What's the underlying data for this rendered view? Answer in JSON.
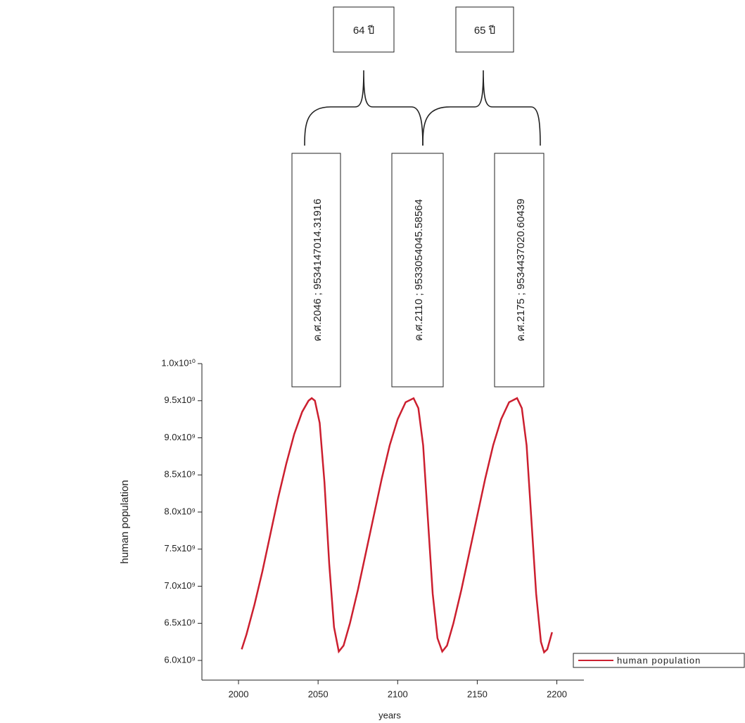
{
  "chart_data": {
    "type": "line",
    "xlabel": "years",
    "ylabel": "human population",
    "x": [
      2002,
      2005,
      2010,
      2015,
      2020,
      2025,
      2030,
      2035,
      2040,
      2044,
      2046,
      2048,
      2051,
      2054,
      2057,
      2060,
      2063,
      2066,
      2070,
      2075,
      2080,
      2085,
      2090,
      2095,
      2100,
      2105,
      2110,
      2113,
      2116,
      2119,
      2122,
      2125,
      2128,
      2131,
      2135,
      2140,
      2145,
      2150,
      2155,
      2160,
      2165,
      2170,
      2175,
      2178,
      2181,
      2184,
      2187,
      2190,
      2192,
      2194,
      2197
    ],
    "series": [
      {
        "name": "human population",
        "color": "#cc1f2f",
        "values": [
          6150000000,
          6350000000,
          6750000000,
          7200000000,
          7700000000,
          8200000000,
          8650000000,
          9050000000,
          9350000000,
          9500000000,
          9534147014,
          9500000000,
          9200000000,
          8400000000,
          7300000000,
          6450000000,
          6120000000,
          6200000000,
          6500000000,
          6950000000,
          7450000000,
          7950000000,
          8450000000,
          8900000000,
          9250000000,
          9480000000,
          9533054046,
          9400000000,
          8900000000,
          7900000000,
          6900000000,
          6300000000,
          6120000000,
          6200000000,
          6500000000,
          6950000000,
          7450000000,
          7950000000,
          8450000000,
          8900000000,
          9250000000,
          9480000000,
          9534437021,
          9400000000,
          8900000000,
          7900000000,
          6900000000,
          6250000000,
          6110000000,
          6150000000,
          6380000000
        ]
      }
    ],
    "xlim": [
      1977,
      2217
    ],
    "xticks": [
      2000,
      2050,
      2100,
      2150,
      2200
    ],
    "ylim": [
      5735000000,
      10000000000
    ],
    "yticks": [
      {
        "value": 6000000000,
        "label": "6.0x10⁹"
      },
      {
        "value": 6500000000,
        "label": "6.5x10⁹"
      },
      {
        "value": 7000000000,
        "label": "7.0x10⁹"
      },
      {
        "value": 7500000000,
        "label": "7.5x10⁹"
      },
      {
        "value": 8000000000,
        "label": "8.0x10⁹"
      },
      {
        "value": 8500000000,
        "label": "8.5x10⁹"
      },
      {
        "value": 9000000000,
        "label": "9.0x10⁹"
      },
      {
        "value": 9500000000,
        "label": "9.5x10⁹"
      },
      {
        "value": 10000000000,
        "label": "1.0x10¹⁰"
      }
    ],
    "legend": "lower-right",
    "annotations": [
      {
        "text": "ค.ศ.2046 ; 9534147014.31916"
      },
      {
        "text": "ค.ศ.2110 ; 9533054045.58564"
      },
      {
        "text": "ค.ศ.2175 ; 9534437020.60439"
      }
    ],
    "intervals": [
      {
        "text": "64 ปี"
      },
      {
        "text": "65 ปี"
      }
    ]
  }
}
